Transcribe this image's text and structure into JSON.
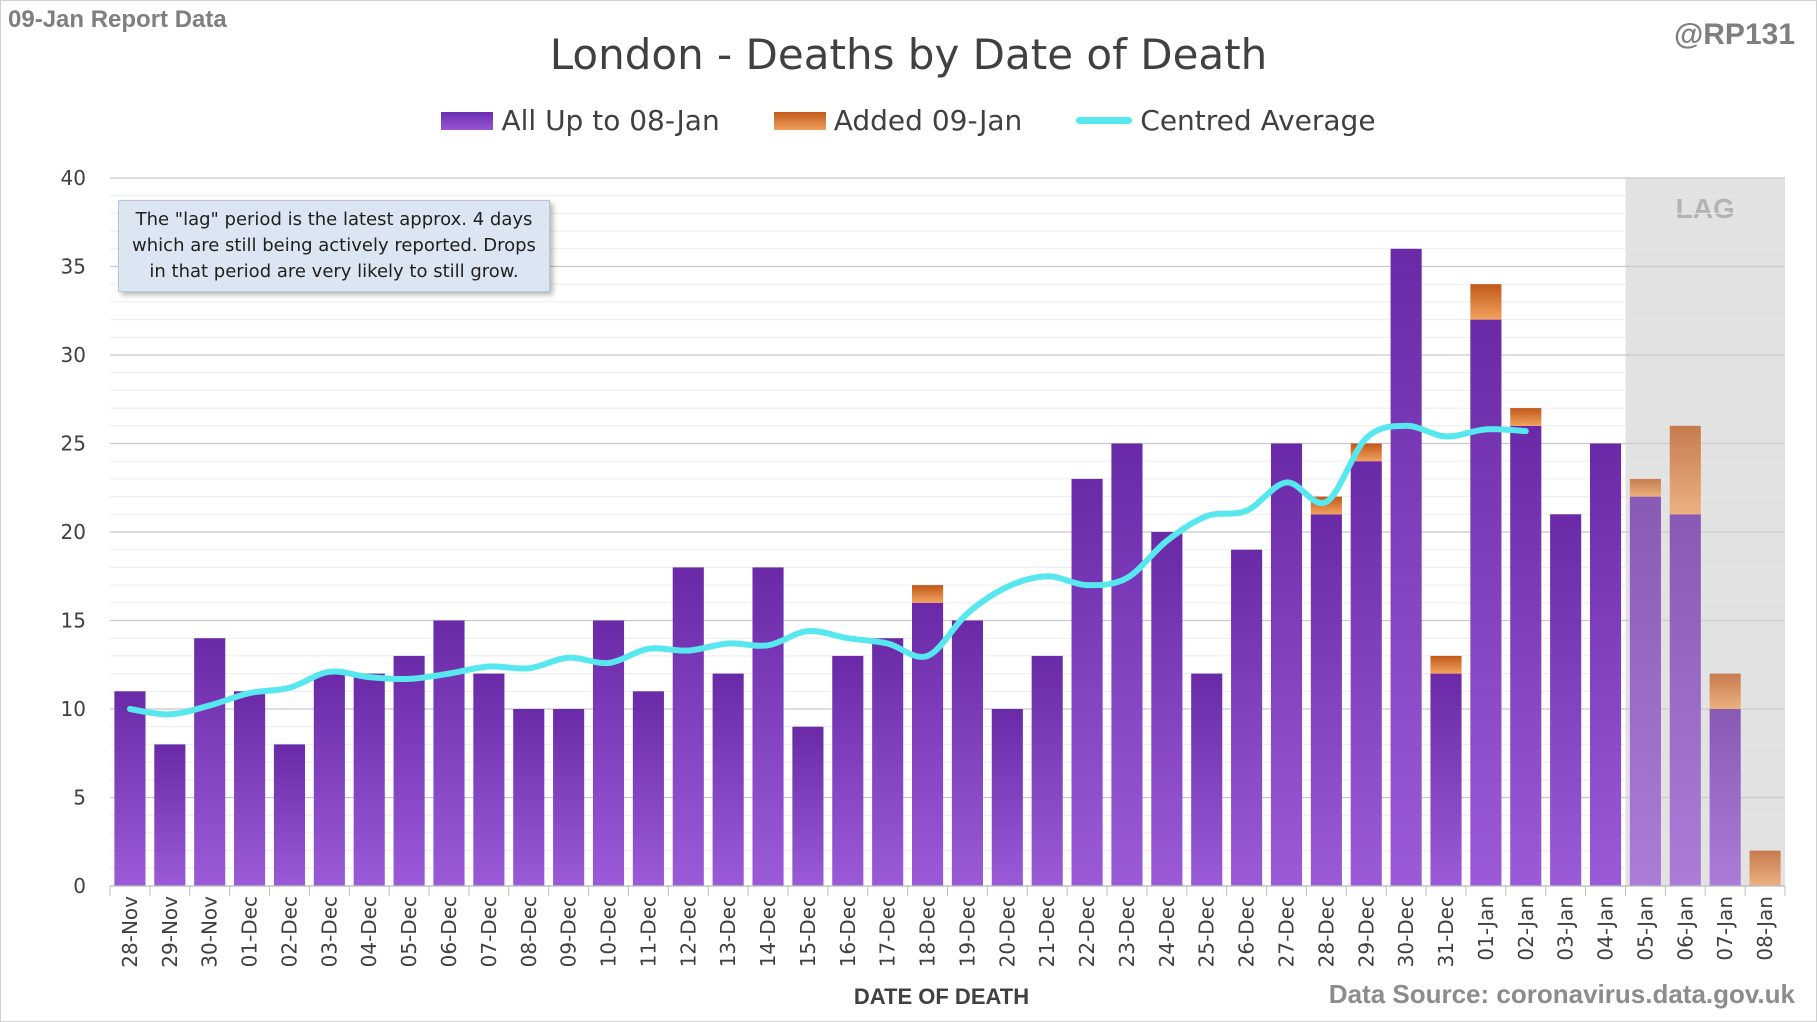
{
  "report_label": "09-Jan Report Data",
  "handle": "@RP131",
  "source": "Data Source: coronavirus.data.gov.uk",
  "note_text": "The \"lag\" period is the latest approx. 4 days which are still being actively reported.  Drops in that period are very likely to still grow.",
  "chart_data": {
    "type": "bar",
    "title": "London - Deaths by Date of Death",
    "xlabel": "DATE OF DEATH",
    "ylabel": "",
    "ylim": [
      0,
      40
    ],
    "yticks": [
      0,
      5,
      10,
      15,
      20,
      25,
      30,
      35,
      40
    ],
    "categories": [
      "28-Nov",
      "29-Nov",
      "30-Nov",
      "01-Dec",
      "02-Dec",
      "03-Dec",
      "04-Dec",
      "05-Dec",
      "06-Dec",
      "07-Dec",
      "08-Dec",
      "09-Dec",
      "10-Dec",
      "11-Dec",
      "12-Dec",
      "13-Dec",
      "14-Dec",
      "15-Dec",
      "16-Dec",
      "17-Dec",
      "18-Dec",
      "19-Dec",
      "20-Dec",
      "21-Dec",
      "22-Dec",
      "23-Dec",
      "24-Dec",
      "25-Dec",
      "26-Dec",
      "27-Dec",
      "28-Dec",
      "29-Dec",
      "30-Dec",
      "31-Dec",
      "01-Jan",
      "02-Jan",
      "03-Jan",
      "04-Jan",
      "05-Jan",
      "06-Jan",
      "07-Jan",
      "08-Jan"
    ],
    "series": [
      {
        "name": "All Up to 08-Jan",
        "color": "#7030a0",
        "stacked": true,
        "values": [
          11,
          8,
          14,
          11,
          8,
          12,
          12,
          13,
          15,
          12,
          10,
          10,
          15,
          11,
          18,
          12,
          18,
          9,
          13,
          14,
          16,
          15,
          10,
          13,
          23,
          25,
          20,
          12,
          19,
          25,
          21,
          24,
          36,
          12,
          32,
          26,
          21,
          25,
          22,
          21,
          10,
          0
        ]
      },
      {
        "name": "Added 09-Jan",
        "color": "#e07b39",
        "stacked": true,
        "values": [
          0,
          0,
          0,
          0,
          0,
          0,
          0,
          0,
          0,
          0,
          0,
          0,
          0,
          0,
          0,
          0,
          0,
          0,
          0,
          0,
          1,
          0,
          0,
          0,
          0,
          0,
          0,
          0,
          0,
          0,
          1,
          1,
          0,
          1,
          2,
          1,
          0,
          0,
          1,
          5,
          2,
          2
        ]
      },
      {
        "name": "Centred Average",
        "type": "line",
        "color": "#56e8ee",
        "values": [
          10.0,
          9.7,
          10.2,
          10.9,
          11.2,
          12.1,
          11.8,
          11.7,
          12.0,
          12.4,
          12.3,
          12.9,
          12.6,
          13.4,
          13.3,
          13.7,
          13.6,
          14.4,
          14.0,
          13.7,
          13.0,
          15.4,
          16.9,
          17.5,
          17.0,
          17.4,
          19.5,
          20.9,
          21.2,
          22.8,
          21.7,
          25.3,
          26.0,
          25.4,
          25.8,
          25.7,
          null,
          null,
          null,
          null,
          null,
          null
        ]
      }
    ],
    "lag_label": "LAG",
    "lag_categories": [
      "05-Jan",
      "06-Jan",
      "07-Jan",
      "08-Jan"
    ],
    "grid": true,
    "legend": "top-center"
  }
}
